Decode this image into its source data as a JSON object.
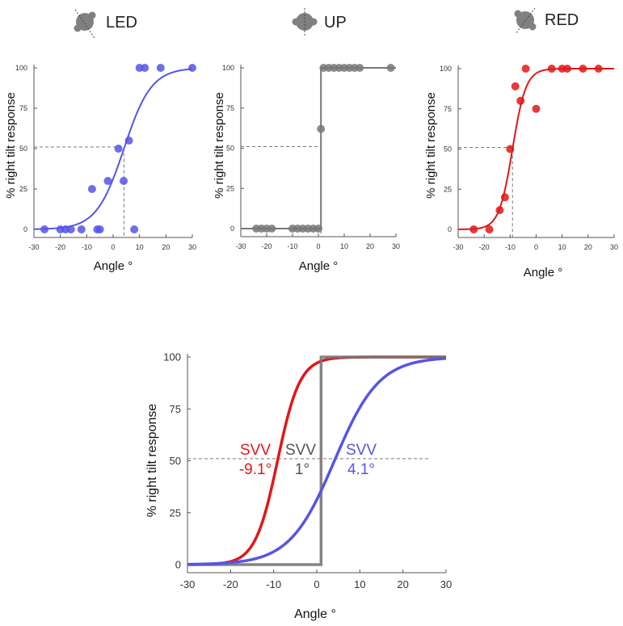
{
  "colors": {
    "blue": "#5555e6",
    "gray": "#777777",
    "red": "#e01818",
    "axis": "#555555",
    "dash": "#777777",
    "head": "#808080"
  },
  "chart_data": [
    {
      "type": "scatter",
      "id": "led",
      "title": "LED",
      "head_icon": "head-tilted-left-icon",
      "xlabel": "Angle °",
      "ylabel": "% right tilt response",
      "xlim": [
        -30,
        30
      ],
      "ylim": [
        0,
        100
      ],
      "xticks": [
        "-30",
        "-20",
        "-10",
        "0",
        "10",
        "20",
        "30"
      ],
      "yticks": [
        "0",
        "25",
        "50",
        "75",
        "100"
      ],
      "color": "blue",
      "points": [
        {
          "x": -26,
          "y": 0
        },
        {
          "x": -20,
          "y": 0
        },
        {
          "x": -18,
          "y": 0
        },
        {
          "x": -16,
          "y": 0
        },
        {
          "x": -12,
          "y": 0
        },
        {
          "x": -8,
          "y": 25
        },
        {
          "x": -6,
          "y": 0
        },
        {
          "x": -5,
          "y": 0
        },
        {
          "x": -2,
          "y": 30
        },
        {
          "x": 2,
          "y": 50
        },
        {
          "x": 4,
          "y": 30
        },
        {
          "x": 6,
          "y": 55
        },
        {
          "x": 8,
          "y": 0
        },
        {
          "x": 10,
          "y": 100
        },
        {
          "x": 12,
          "y": 100
        },
        {
          "x": 18,
          "y": 100
        },
        {
          "x": 30,
          "y": 100
        }
      ],
      "fit": {
        "kind": "logistic",
        "mu": 4.1,
        "s": 5.2
      },
      "threshold": {
        "x": 4.1,
        "y": 51
      }
    },
    {
      "type": "scatter",
      "id": "up",
      "title": "UP",
      "head_icon": "head-upright-icon",
      "xlabel": "Angle °",
      "ylabel": "% right tilt response",
      "xlim": [
        -30,
        30
      ],
      "ylim": [
        0,
        100
      ],
      "xticks": [
        "-30",
        "-20",
        "-10",
        "0",
        "10",
        "20",
        "30"
      ],
      "yticks": [
        "0",
        "25",
        "50",
        "75",
        "100"
      ],
      "color": "gray",
      "points": [
        {
          "x": -24,
          "y": 0
        },
        {
          "x": -22,
          "y": 0
        },
        {
          "x": -20,
          "y": 0
        },
        {
          "x": -18,
          "y": 0
        },
        {
          "x": -10,
          "y": 0
        },
        {
          "x": -8,
          "y": 0
        },
        {
          "x": -6,
          "y": 0
        },
        {
          "x": -4,
          "y": 0
        },
        {
          "x": -2,
          "y": 0
        },
        {
          "x": 0,
          "y": 0
        },
        {
          "x": 1,
          "y": 62
        },
        {
          "x": 2,
          "y": 100
        },
        {
          "x": 4,
          "y": 100
        },
        {
          "x": 6,
          "y": 100
        },
        {
          "x": 8,
          "y": 100
        },
        {
          "x": 10,
          "y": 100
        },
        {
          "x": 12,
          "y": 100
        },
        {
          "x": 14,
          "y": 100
        },
        {
          "x": 16,
          "y": 100
        },
        {
          "x": 28,
          "y": 100
        }
      ],
      "fit": {
        "kind": "step",
        "mu": 1
      },
      "threshold": {
        "x": 1,
        "y": 51
      }
    },
    {
      "type": "scatter",
      "id": "red",
      "title": "RED",
      "head_icon": "head-tilted-right-icon",
      "xlabel": "Angle °",
      "ylabel": "% right tilt response",
      "xlim": [
        -30,
        30
      ],
      "ylim": [
        0,
        100
      ],
      "xticks": [
        "-30",
        "-20",
        "-10",
        "0",
        "10",
        "20",
        "30"
      ],
      "yticks": [
        "0",
        "25",
        "50",
        "75",
        "100"
      ],
      "color": "red",
      "points": [
        {
          "x": -24,
          "y": 0
        },
        {
          "x": -18,
          "y": 0
        },
        {
          "x": -14,
          "y": 12
        },
        {
          "x": -12,
          "y": 20
        },
        {
          "x": -10,
          "y": 50
        },
        {
          "x": -8,
          "y": 89
        },
        {
          "x": -6,
          "y": 80
        },
        {
          "x": -4,
          "y": 100
        },
        {
          "x": 0,
          "y": 75
        },
        {
          "x": 6,
          "y": 100
        },
        {
          "x": 10,
          "y": 100
        },
        {
          "x": 12,
          "y": 100
        },
        {
          "x": 18,
          "y": 100
        },
        {
          "x": 24,
          "y": 100
        }
      ],
      "fit": {
        "kind": "logistic",
        "mu": -9.1,
        "s": 2.6
      },
      "threshold": {
        "x": -9.1,
        "y": 51
      }
    },
    {
      "type": "line",
      "id": "summary",
      "xlabel": "Angle °",
      "ylabel": "% right tilt response",
      "xlim": [
        -30,
        30
      ],
      "ylim": [
        0,
        100
      ],
      "xticks": [
        "-30",
        "-20",
        "-10",
        "0",
        "10",
        "20",
        "30"
      ],
      "yticks": [
        "0",
        "25",
        "50",
        "75",
        "100"
      ],
      "reference_line": {
        "y": 51,
        "x_range": [
          -30,
          26
        ]
      },
      "series": [
        {
          "name": "RED",
          "color": "red",
          "kind": "logistic",
          "mu": -9.1,
          "s": 2.6
        },
        {
          "name": "UP",
          "color": "gray",
          "kind": "step",
          "mu": 1
        },
        {
          "name": "LED",
          "color": "blue",
          "kind": "logistic",
          "mu": 4.1,
          "s": 5.2
        }
      ],
      "annotations": [
        {
          "label": "SVV",
          "value": "-9.1°",
          "color": "red"
        },
        {
          "label": "SVV",
          "value": "1°",
          "color": "gray"
        },
        {
          "label": "SVV",
          "value": "4.1°",
          "color": "blue"
        }
      ]
    }
  ]
}
